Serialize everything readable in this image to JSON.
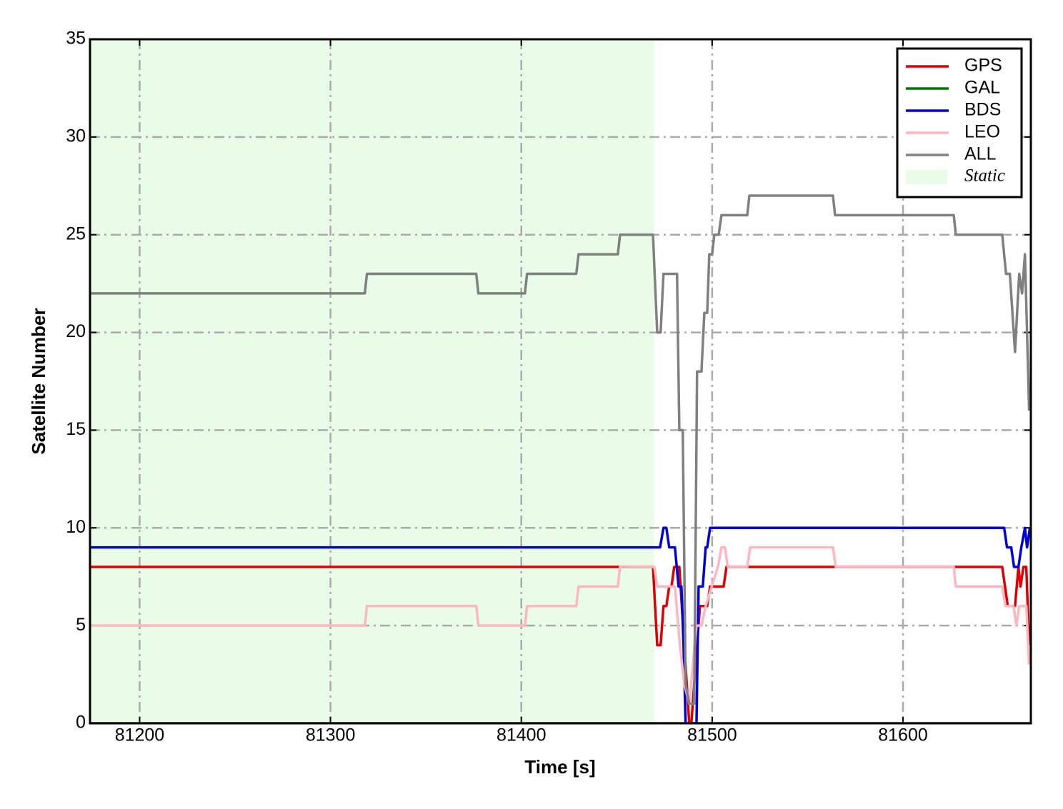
{
  "chart_data": {
    "type": "line",
    "xlabel": "Time [s]",
    "ylabel": "Satellite Number",
    "xlim": [
      81174,
      81667
    ],
    "ylim": [
      0,
      35
    ],
    "xticks": [
      81200,
      81300,
      81400,
      81500,
      81600
    ],
    "yticks": [
      0,
      5,
      10,
      15,
      20,
      25,
      30,
      35
    ],
    "grid": true,
    "legend": "upper right",
    "shaded_region": {
      "name": "Static",
      "color": "#e8fce8",
      "x": [
        81174,
        81469.5
      ]
    },
    "series": [
      {
        "name": "GPS",
        "color": "#dd0000",
        "x": [
          81174,
          81469.0,
          81471.2,
          81473.0,
          81474.5,
          81476.0,
          81477.5,
          81478.7,
          81480.1,
          81482.8,
          81488.0,
          81489.1,
          81493.6,
          81497.4,
          81498.9,
          81506.0,
          81507.5,
          81652.0,
          81654.9,
          81658.7,
          81660.5,
          81661.6,
          81663.1,
          81664.6,
          81666.1
        ],
        "values": [
          8,
          8,
          4,
          4,
          6,
          6,
          7,
          7,
          8,
          8,
          0,
          0,
          6,
          6,
          7,
          7,
          8,
          8,
          6,
          6,
          8,
          7,
          8,
          8,
          4
        ]
      },
      {
        "name": "GAL",
        "color": "#007700",
        "x": [
          81174,
          81667
        ],
        "values": [
          0,
          0
        ]
      },
      {
        "name": "BDS",
        "color": "#0000dd",
        "x": [
          81174,
          81472.7,
          81474.5,
          81476.0,
          81477.5,
          81480.5,
          81482.4,
          81483.9,
          81485.0,
          81486.1,
          81491.8,
          81492.9,
          81495.1,
          81496.6,
          81497.4,
          81498.9,
          81653.0,
          81654.5,
          81656.7,
          81658.2,
          81660.5,
          81662.0,
          81663.9,
          81665.0,
          81666.5
        ],
        "values": [
          9,
          9,
          10,
          10,
          9,
          9,
          7,
          7,
          4,
          0,
          0,
          7,
          7,
          9,
          9,
          10,
          10,
          9,
          9,
          8,
          8,
          9,
          10,
          9,
          10
        ]
      },
      {
        "name": "LEO",
        "color": "#ffb6c1",
        "x": [
          81174,
          81318.0,
          81319.1,
          81376.4,
          81377.5,
          81401.9,
          81403.0,
          81428.8,
          81430.0,
          81450.6,
          81451.7,
          81469.7,
          81471.2,
          81478.7,
          81480.5,
          81483.1,
          81485.4,
          81488.0,
          81491.8,
          81494.4,
          81496.6,
          81503.0,
          81504.9,
          81506.7,
          81508.2,
          81518.4,
          81519.9,
          81563.3,
          81564.8,
          81626.6,
          81627.7,
          81652.0,
          81653.7,
          81657.9,
          81659.4,
          81660.9,
          81664.6,
          81666.1
        ],
        "values": [
          5,
          5,
          6,
          6,
          5,
          5,
          6,
          6,
          7,
          7,
          8,
          8,
          7,
          7,
          7,
          4,
          2,
          1,
          5,
          5,
          6,
          8,
          9,
          9,
          8,
          8,
          9,
          9,
          8,
          8,
          7,
          7,
          6,
          6,
          5,
          6,
          6,
          3
        ]
      },
      {
        "name": "ALL",
        "color": "#808080",
        "x": [
          81174,
          81318.0,
          81319.1,
          81376.4,
          81377.5,
          81401.9,
          81403.0,
          81428.8,
          81430.0,
          81450.6,
          81451.7,
          81469.0,
          81471.2,
          81473.0,
          81474.5,
          81481.6,
          81482.8,
          81484.6,
          81486.1,
          81488.0,
          81490.6,
          81492.1,
          81494.4,
          81495.9,
          81497.4,
          81498.5,
          81500.0,
          81501.1,
          81503.4,
          81504.9,
          81518.4,
          81519.5,
          81563.3,
          81564.4,
          81626.6,
          81627.7,
          81652.0,
          81654.0,
          81656.0,
          81658.7,
          81660.9,
          81662.4,
          81663.9,
          81666.1
        ],
        "values": [
          22,
          22,
          23,
          23,
          22,
          22,
          23,
          23,
          24,
          24,
          25,
          25,
          20,
          20,
          23,
          23,
          15,
          15,
          2,
          1,
          1,
          18,
          18,
          21,
          21,
          24,
          24,
          25,
          25,
          26,
          26,
          27,
          27,
          26,
          26,
          25,
          25,
          23,
          23,
          19,
          23,
          22,
          24,
          16
        ]
      }
    ]
  }
}
